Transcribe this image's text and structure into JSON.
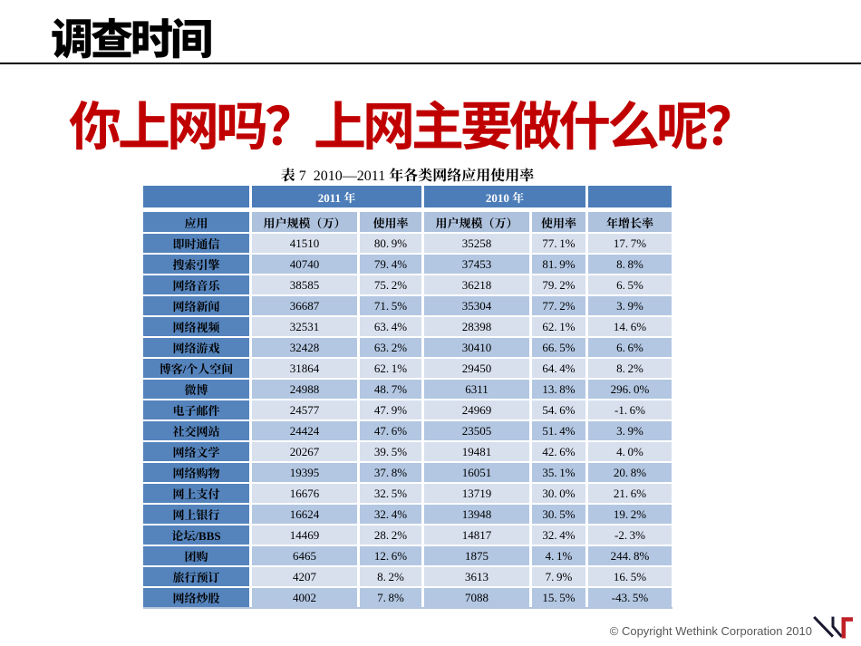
{
  "slide": {
    "header": {
      "title": "调查时间"
    },
    "question": "你上网吗？上网主要做什么呢？",
    "footer": {
      "copyright": "© Copyright Wethink Corporation 2010",
      "logo": "wethink-logo"
    }
  },
  "colors": {
    "question_red": "#c00000",
    "band_blue": "#4c7db8",
    "first_column_blue": "#5584bd",
    "header_cell_blue": "#aec2de",
    "row_light": "#d8e0ee",
    "row_dark": "#b3c7e2",
    "logo_navy": "#181831",
    "logo_red": "#c02128"
  },
  "chart_data": {
    "type": "table",
    "title": "表 7  2010—2011 年各类网络应用使用率",
    "column_groups": [
      "2011 年",
      "2010 年"
    ],
    "columns": [
      "应用",
      "用户规模（万）",
      "使用率",
      "用户规模（万）",
      "使用率",
      "年增长率"
    ],
    "rows": [
      {
        "label": "即时通信",
        "values": [
          "41510",
          "80.9%",
          "35258",
          "77.1%",
          "17.7%"
        ]
      },
      {
        "label": "搜索引擎",
        "values": [
          "40740",
          "79.4%",
          "37453",
          "81.9%",
          "8.8%"
        ]
      },
      {
        "label": "网络音乐",
        "values": [
          "38585",
          "75.2%",
          "36218",
          "79.2%",
          "6.5%"
        ]
      },
      {
        "label": "网络新闻",
        "values": [
          "36687",
          "71.5%",
          "35304",
          "77.2%",
          "3.9%"
        ]
      },
      {
        "label": "网络视频",
        "values": [
          "32531",
          "63.4%",
          "28398",
          "62.1%",
          "14.6%"
        ]
      },
      {
        "label": "网络游戏",
        "values": [
          "32428",
          "63.2%",
          "30410",
          "66.5%",
          "6.6%"
        ]
      },
      {
        "label": "博客/个人空间",
        "values": [
          "31864",
          "62.1%",
          "29450",
          "64.4%",
          "8.2%"
        ]
      },
      {
        "label": "微博",
        "values": [
          "24988",
          "48.7%",
          "6311",
          "13.8%",
          "296.0%"
        ]
      },
      {
        "label": "电子邮件",
        "values": [
          "24577",
          "47.9%",
          "24969",
          "54.6%",
          "-1.6%"
        ]
      },
      {
        "label": "社交网站",
        "values": [
          "24424",
          "47.6%",
          "23505",
          "51.4%",
          "3.9%"
        ]
      },
      {
        "label": "网络文学",
        "values": [
          "20267",
          "39.5%",
          "19481",
          "42.6%",
          "4.0%"
        ]
      },
      {
        "label": "网络购物",
        "values": [
          "19395",
          "37.8%",
          "16051",
          "35.1%",
          "20.8%"
        ]
      },
      {
        "label": "网上支付",
        "values": [
          "16676",
          "32.5%",
          "13719",
          "30.0%",
          "21.6%"
        ]
      },
      {
        "label": "网上银行",
        "values": [
          "16624",
          "32.4%",
          "13948",
          "30.5%",
          "19.2%"
        ]
      },
      {
        "label": "论坛/BBS",
        "values": [
          "14469",
          "28.2%",
          "14817",
          "32.4%",
          "-2.3%"
        ]
      },
      {
        "label": "团购",
        "values": [
          "6465",
          "12.6%",
          "1875",
          "4.1%",
          "244.8%"
        ]
      },
      {
        "label": "旅行预订",
        "values": [
          "4207",
          "8.2%",
          "3613",
          "7.9%",
          "16.5%"
        ]
      },
      {
        "label": "网络炒股",
        "values": [
          "4002",
          "7.8%",
          "7088",
          "15.5%",
          "-43.5%"
        ]
      }
    ]
  }
}
